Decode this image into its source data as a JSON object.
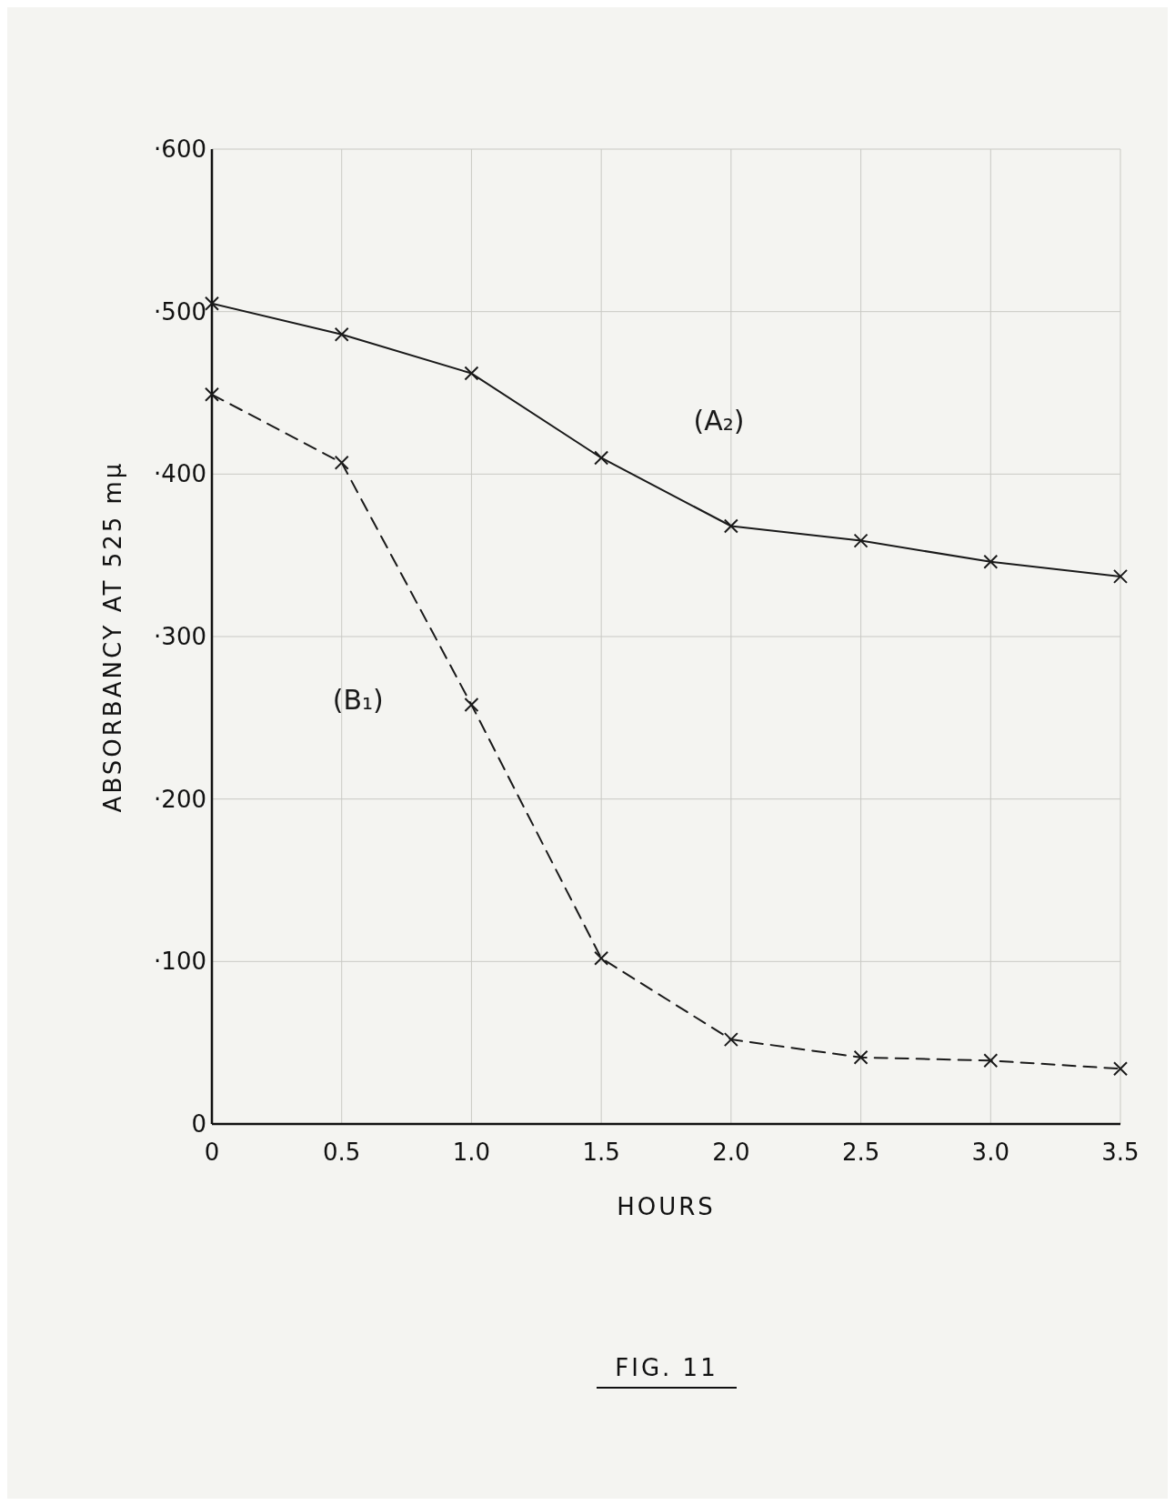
{
  "chart_data": {
    "type": "line",
    "title": "FIG. 11",
    "xlabel": "HOURS",
    "ylabel": "ABSORBANCY AT 525 mµ",
    "x": [
      0,
      0.5,
      1,
      1.5,
      2,
      2.5,
      3,
      3.5
    ],
    "series": [
      {
        "name": "(A₂)",
        "color": "#1a1a1a",
        "line_style": "solid",
        "values": [
          505,
          486,
          462,
          410,
          368,
          359,
          346,
          337
        ]
      },
      {
        "name": "(B₁)",
        "color": "#1a1a1a",
        "line_style": "dashed",
        "values": [
          449,
          407,
          258,
          102,
          52,
          41,
          39,
          34
        ]
      }
    ],
    "xlim": [
      0,
      3.5
    ],
    "xticks": [
      0,
      0.5,
      {
        "value": 1,
        "label": "1.0"
      },
      1.5,
      {
        "value": 2,
        "label": "2.0"
      },
      2.5,
      {
        "value": 3,
        "label": "3.0"
      },
      3.5
    ],
    "ylim": [
      0,
      600
    ],
    "yticks": [
      0,
      {
        "value": 100,
        "label": "·100"
      },
      {
        "value": 200,
        "label": "·200"
      },
      {
        "value": 300,
        "label": "·300"
      },
      {
        "value": 400,
        "label": "·400"
      },
      {
        "value": 500,
        "label": "·500"
      },
      {
        "value": 600,
        "label": "·600"
      }
    ],
    "grid": true,
    "marker": "cross"
  }
}
